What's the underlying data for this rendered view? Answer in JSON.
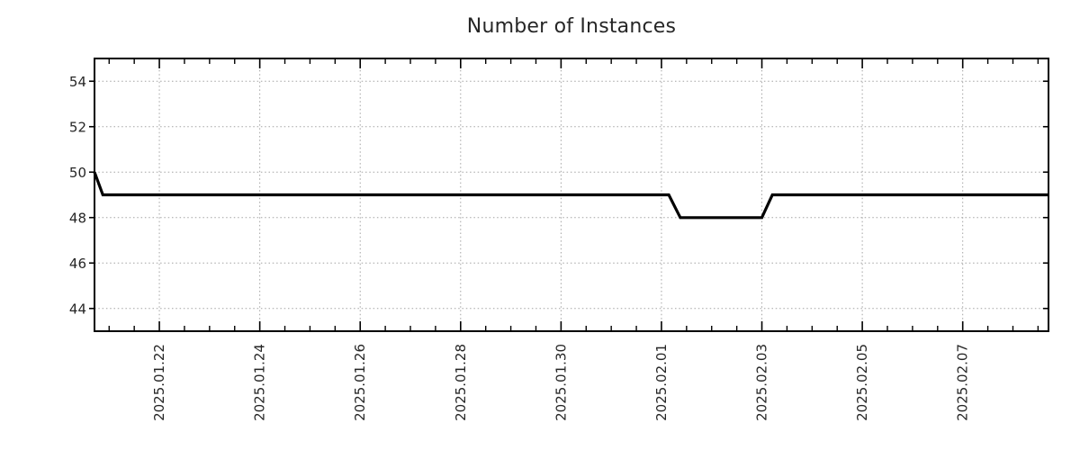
{
  "chart_data": {
    "type": "line",
    "title": "Number of Instances",
    "xlabel": "",
    "ylabel": "",
    "legend": "none",
    "grid": "dotted",
    "ylim": [
      43,
      55
    ],
    "y_ticks": [
      44,
      46,
      48,
      50,
      52,
      54
    ],
    "x_start": "2025-01-20 17:00",
    "x_end": "2025-02-08 17:00",
    "x_minor_interval_hours": 12,
    "x_major_ticks": [
      {
        "t": "2025-01-22 00:00",
        "label": "2025.01.22"
      },
      {
        "t": "2025-01-24 00:00",
        "label": "2025.01.24"
      },
      {
        "t": "2025-01-26 00:00",
        "label": "2025.01.26"
      },
      {
        "t": "2025-01-28 00:00",
        "label": "2025.01.28"
      },
      {
        "t": "2025-01-30 00:00",
        "label": "2025.01.30"
      },
      {
        "t": "2025-02-01 00:00",
        "label": "2025.02.01"
      },
      {
        "t": "2025-02-03 00:00",
        "label": "2025.02.03"
      },
      {
        "t": "2025-02-05 00:00",
        "label": "2025.02.05"
      },
      {
        "t": "2025-02-07 00:00",
        "label": "2025.02.07"
      }
    ],
    "series": [
      {
        "name": "Number of Instances",
        "color": "#000000",
        "line_width": 3.2,
        "points": [
          {
            "t": "2025-01-20 17:00",
            "v": 50
          },
          {
            "t": "2025-01-20 21:00",
            "v": 49
          },
          {
            "t": "2025-02-01 03:30",
            "v": 49
          },
          {
            "t": "2025-02-01 09:00",
            "v": 48
          },
          {
            "t": "2025-02-03 00:00",
            "v": 48
          },
          {
            "t": "2025-02-03 05:00",
            "v": 49
          },
          {
            "t": "2025-02-08 17:00",
            "v": 49
          }
        ]
      }
    ],
    "colors": {
      "axis": "#000000",
      "grid": "#a3a3a3",
      "text": "#262626",
      "line": "#000000",
      "background": "#ffffff"
    }
  }
}
